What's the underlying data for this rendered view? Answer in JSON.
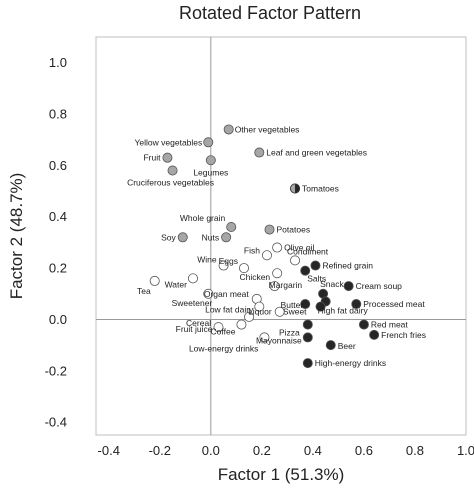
{
  "chart_data": {
    "type": "scatter",
    "title": "Rotated Factor Pattern",
    "xlabel": "Factor 1 (51.3%)",
    "ylabel": "Factor 2 (48.7%)",
    "xlim": [
      -0.45,
      1.0
    ],
    "ylim": [
      -0.45,
      1.1
    ],
    "xticks": [
      "-0.4",
      "-0.2",
      "0.0",
      "0.2",
      "0.4",
      "0.6",
      "0.8",
      "1.0"
    ],
    "yticks": [
      "1.0",
      "0.8",
      "0.6",
      "0.4",
      "0.2",
      "0.0",
      "-0.2",
      "-0.4"
    ],
    "grid": false,
    "reference_lines": "x=0 and y=0",
    "fill_colors": {
      "gray": "#a6a6a6",
      "white": "#ffffff",
      "black": "#262626",
      "half": "half-gray-half-black"
    },
    "points": [
      {
        "label": "Other vegetables",
        "x": 0.07,
        "y": 0.74,
        "fill": "gray"
      },
      {
        "label": "Yellow vegetables",
        "x": -0.01,
        "y": 0.69,
        "fill": "gray"
      },
      {
        "label": "Leaf and green vegetables",
        "x": 0.19,
        "y": 0.65,
        "fill": "gray"
      },
      {
        "label": "Fruit",
        "x": -0.17,
        "y": 0.63,
        "fill": "gray"
      },
      {
        "label": "Legumes",
        "x": 0.0,
        "y": 0.62,
        "fill": "gray"
      },
      {
        "label": "Cruciferous vegetables",
        "x": -0.15,
        "y": 0.58,
        "fill": "gray"
      },
      {
        "label": "Tomatoes",
        "x": 0.33,
        "y": 0.51,
        "fill": "half"
      },
      {
        "label": "Whole grain",
        "x": 0.08,
        "y": 0.36,
        "fill": "gray"
      },
      {
        "label": "Potatoes",
        "x": 0.23,
        "y": 0.35,
        "fill": "gray"
      },
      {
        "label": "Soy",
        "x": -0.11,
        "y": 0.32,
        "fill": "gray"
      },
      {
        "label": "Nuts",
        "x": 0.06,
        "y": 0.32,
        "fill": "gray"
      },
      {
        "label": "Olive oil",
        "x": 0.26,
        "y": 0.28,
        "fill": "white"
      },
      {
        "label": "Fish",
        "x": 0.22,
        "y": 0.25,
        "fill": "white"
      },
      {
        "label": "Condiment",
        "x": 0.33,
        "y": 0.23,
        "fill": "white"
      },
      {
        "label": "Refined grain",
        "x": 0.41,
        "y": 0.21,
        "fill": "black"
      },
      {
        "label": "Eggs",
        "x": 0.13,
        "y": 0.2,
        "fill": "white"
      },
      {
        "label": "Salts",
        "x": 0.37,
        "y": 0.19,
        "fill": "black"
      },
      {
        "label": "Wine",
        "x": 0.05,
        "y": 0.21,
        "fill": "white"
      },
      {
        "label": "Chicken",
        "x": 0.26,
        "y": 0.18,
        "fill": "white"
      },
      {
        "label": "Water",
        "x": -0.07,
        "y": 0.16,
        "fill": "white"
      },
      {
        "label": "Tea",
        "x": -0.22,
        "y": 0.15,
        "fill": "white"
      },
      {
        "label": "Cream soup",
        "x": 0.54,
        "y": 0.13,
        "fill": "black"
      },
      {
        "label": "Margarin",
        "x": 0.25,
        "y": 0.13,
        "fill": "white"
      },
      {
        "label": "Snack",
        "x": 0.44,
        "y": 0.1,
        "fill": "black"
      },
      {
        "label": "Organ meat",
        "x": 0.18,
        "y": 0.08,
        "fill": "white"
      },
      {
        "label": "Sweetener",
        "x": -0.01,
        "y": 0.1,
        "fill": "white"
      },
      {
        "label": "High fat dairy",
        "x": 0.45,
        "y": 0.07,
        "fill": "black"
      },
      {
        "label": "Butter",
        "x": 0.37,
        "y": 0.06,
        "fill": "black"
      },
      {
        "label": "Processed meat",
        "x": 0.57,
        "y": 0.06,
        "fill": "black"
      },
      {
        "label": "Low fat dairy",
        "x": 0.19,
        "y": 0.05,
        "fill": "white"
      },
      {
        "label": "Sweet",
        "x": 0.43,
        "y": 0.05,
        "fill": "black"
      },
      {
        "label": "Liquor",
        "x": 0.27,
        "y": 0.03,
        "fill": "white"
      },
      {
        "label": "Cereal",
        "x": 0.15,
        "y": 0.01,
        "fill": "white"
      },
      {
        "label": "Red meat",
        "x": 0.6,
        "y": -0.02,
        "fill": "black"
      },
      {
        "label": "Coffee",
        "x": 0.12,
        "y": -0.02,
        "fill": "white"
      },
      {
        "label": "Fruit juice",
        "x": 0.03,
        "y": -0.03,
        "fill": "white"
      },
      {
        "label": "Pizza",
        "x": 0.38,
        "y": -0.02,
        "fill": "black"
      },
      {
        "label": "Mayonnaise",
        "x": 0.38,
        "y": -0.07,
        "fill": "black"
      },
      {
        "label": "French fries",
        "x": 0.64,
        "y": -0.06,
        "fill": "black"
      },
      {
        "label": "Beer",
        "x": 0.47,
        "y": -0.1,
        "fill": "black"
      },
      {
        "label": "Low-energy drinks",
        "x": 0.21,
        "y": -0.07,
        "fill": "white"
      },
      {
        "label": "High-energy drinks",
        "x": 0.38,
        "y": -0.17,
        "fill": "black"
      }
    ]
  }
}
